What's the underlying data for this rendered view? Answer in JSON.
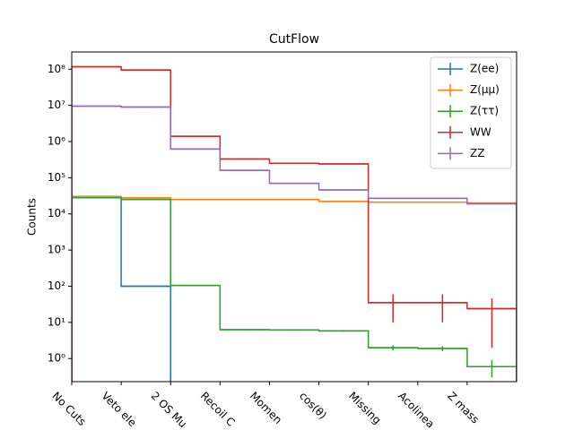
{
  "chart_data": {
    "type": "step",
    "title": "CutFlow",
    "y_label": "Counts",
    "log_scale_y": true,
    "legend_position": "upper right",
    "categories": [
      "No Cuts",
      "Veto ele",
      "2 OS Mu",
      "Recoil C",
      "Momen",
      "cos(θ)",
      "Missing",
      "Acolinea",
      "Z mass"
    ],
    "ylim": [
      0.23,
      300000000
    ],
    "yticks": [
      {
        "value": 1,
        "label": "10⁰"
      },
      {
        "value": 10,
        "label": "10¹"
      },
      {
        "value": 100,
        "label": "10²"
      },
      {
        "value": 1000,
        "label": "10³"
      },
      {
        "value": 10000,
        "label": "10⁴"
      },
      {
        "value": 100000,
        "label": "10⁵"
      },
      {
        "value": 1000000,
        "label": "10⁶"
      },
      {
        "value": 10000000,
        "label": "10⁷"
      },
      {
        "value": 100000000,
        "label": "10⁸"
      }
    ],
    "series": [
      {
        "name": "Z(ee)",
        "color": "#1f77b4",
        "values": [
          30000,
          100,
          0,
          0,
          0,
          0,
          0,
          0,
          0
        ],
        "errors": [
          0,
          0,
          0,
          0,
          0,
          0,
          0,
          0,
          0
        ]
      },
      {
        "name": "Z(μμ)",
        "color": "#ff7f0e",
        "values": [
          30000,
          28000,
          25000,
          25000,
          25000,
          22000,
          21000,
          21000,
          20000
        ],
        "errors": [
          0,
          0,
          0,
          0,
          0,
          0,
          0,
          0,
          0
        ]
      },
      {
        "name": "Z(ττ)",
        "color": "#2ca02c",
        "values": [
          28000,
          25000,
          105,
          6.3,
          6.2,
          5.8,
          2,
          1.9,
          0.6
        ],
        "errors": [
          0,
          0,
          0,
          0.3,
          0.3,
          0.3,
          0.3,
          0.3,
          0.3
        ]
      },
      {
        "name": "WW",
        "color": "#d62728",
        "values": [
          117000000,
          95000000,
          1400000,
          330000,
          250000,
          240000,
          35,
          35,
          24
        ],
        "errors": [
          0,
          0,
          0,
          0,
          0,
          0,
          25,
          25,
          22
        ]
      },
      {
        "name": "ZZ",
        "color": "#9467bd",
        "values": [
          9500000,
          9000000,
          620000,
          160000,
          70000,
          46000,
          27000,
          27000,
          19000
        ],
        "errors": [
          0,
          0,
          0,
          0,
          0,
          0,
          0,
          0,
          0
        ]
      }
    ]
  }
}
